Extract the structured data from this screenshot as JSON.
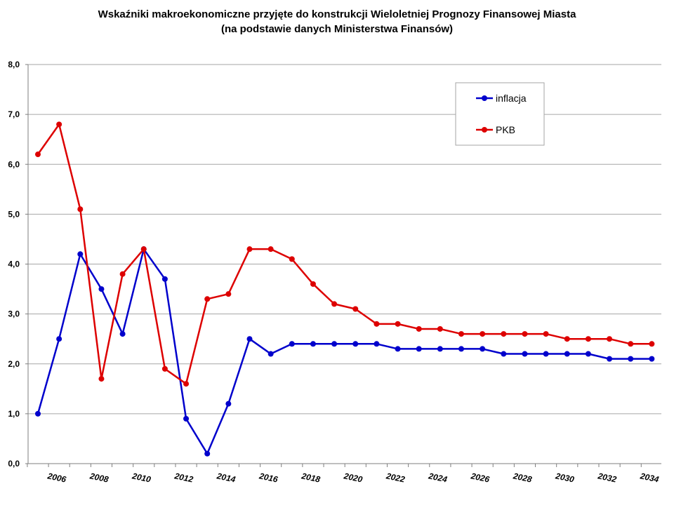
{
  "chart_data": {
    "type": "line",
    "title": "Wskaźniki makroekonomiczne przyjęte do konstrukcji Wieloletniej Prognozy Finansowej Miasta",
    "subtitle": "(na podstawie danych Ministerstwa Finansów)",
    "xlabel": "",
    "ylabel": "",
    "ylim": [
      0,
      8
    ],
    "yticks": [
      "0,0",
      "1,0",
      "2,0",
      "3,0",
      "4,0",
      "5,0",
      "6,0",
      "7,0",
      "8,0"
    ],
    "x": [
      2005,
      2006,
      2007,
      2008,
      2009,
      2010,
      2011,
      2012,
      2013,
      2014,
      2015,
      2016,
      2017,
      2018,
      2019,
      2020,
      2021,
      2022,
      2023,
      2024,
      2025,
      2026,
      2027,
      2028,
      2029,
      2030,
      2031,
      2032,
      2033,
      2034
    ],
    "xtick_labels": [
      "2006",
      "2008",
      "2010",
      "2012",
      "2014",
      "2016",
      "2018",
      "2020",
      "2022",
      "2024",
      "2026",
      "2028",
      "2030",
      "2032",
      "2034"
    ],
    "grid": "horizontal",
    "legend_position": "top-right",
    "series": [
      {
        "name": "inflacja",
        "color": "#0000cc",
        "values": [
          1.0,
          2.5,
          4.2,
          3.5,
          2.6,
          4.3,
          3.7,
          0.9,
          0.2,
          1.2,
          2.5,
          2.2,
          2.4,
          2.4,
          2.4,
          2.4,
          2.4,
          2.3,
          2.3,
          2.3,
          2.3,
          2.3,
          2.2,
          2.2,
          2.2,
          2.2,
          2.2,
          2.1,
          2.1,
          2.1
        ]
      },
      {
        "name": "PKB",
        "color": "#dd0000",
        "values": [
          6.2,
          6.8,
          5.1,
          1.7,
          3.8,
          4.3,
          1.9,
          1.6,
          3.3,
          3.4,
          4.3,
          4.3,
          4.1,
          3.6,
          3.2,
          3.1,
          2.8,
          2.8,
          2.7,
          2.7,
          2.6,
          2.6,
          2.6,
          2.6,
          2.6,
          2.5,
          2.5,
          2.5,
          2.4,
          2.4
        ]
      }
    ]
  }
}
